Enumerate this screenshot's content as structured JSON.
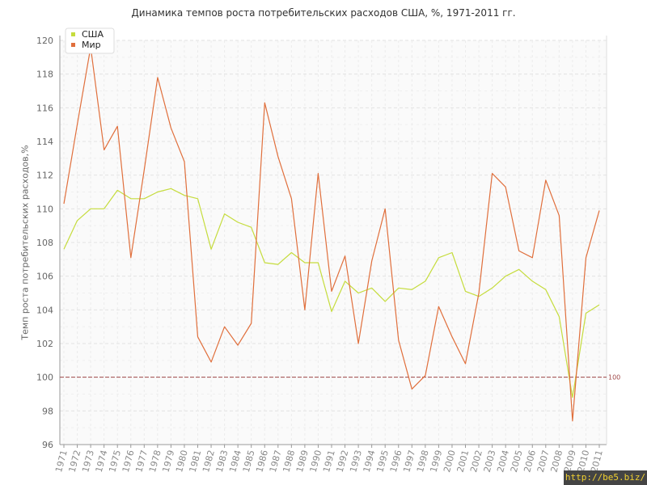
{
  "chart_data": {
    "type": "line",
    "title": "Динамика темпов роста потребительских расходов США, %, 1971-2011 гг.",
    "ylabel": "Темп роста потребительских расходов,%",
    "xlabel": "",
    "ylim": [
      96,
      120
    ],
    "yticks": [
      "96",
      "98",
      "100",
      "102",
      "104",
      "106",
      "108",
      "110",
      "112",
      "114",
      "116",
      "118",
      "120"
    ],
    "x": [
      "1971",
      "1972",
      "1973",
      "1974",
      "1975",
      "1976",
      "1977",
      "1978",
      "1979",
      "1980",
      "1981",
      "1982",
      "1983",
      "1984",
      "1985",
      "1986",
      "1987",
      "1988",
      "1989",
      "1990",
      "1991",
      "1992",
      "1993",
      "1994",
      "1995",
      "1996",
      "1997",
      "1998",
      "1999",
      "2000",
      "2001",
      "2002",
      "2003",
      "2004",
      "2005",
      "2006",
      "2007",
      "2008",
      "2009",
      "2010",
      "2011"
    ],
    "series": [
      {
        "name": "США",
        "color": "#c5dc3c",
        "values": [
          107.6,
          109.3,
          110.0,
          110.0,
          111.1,
          110.6,
          110.6,
          111.0,
          111.2,
          110.8,
          110.6,
          107.6,
          109.7,
          109.2,
          108.9,
          106.8,
          106.7,
          107.4,
          106.8,
          106.8,
          103.9,
          105.7,
          105.0,
          105.3,
          104.5,
          105.3,
          105.2,
          105.7,
          107.1,
          107.4,
          105.1,
          104.8,
          105.3,
          106.0,
          106.4,
          105.7,
          105.2,
          103.6,
          98.8,
          103.8,
          104.3
        ]
      },
      {
        "name": "Мир",
        "color": "#e06f3c",
        "values": [
          110.3,
          115.0,
          119.6,
          113.5,
          114.9,
          107.1,
          112.3,
          117.8,
          114.8,
          112.8,
          102.4,
          100.9,
          103.0,
          101.9,
          103.2,
          116.3,
          113.1,
          110.6,
          104.0,
          112.1,
          105.1,
          107.2,
          102.0,
          106.9,
          110.0,
          102.2,
          99.3,
          100.1,
          104.2,
          102.4,
          100.8,
          105.0,
          112.1,
          111.3,
          107.5,
          107.1,
          111.7,
          109.6,
          97.4,
          107.1,
          109.9
        ]
      }
    ],
    "reference_line": {
      "value": 100,
      "label": "100",
      "color": "#a04848"
    },
    "legend_position": "top-left",
    "grid": true
  },
  "watermark": "http://be5.biz/"
}
